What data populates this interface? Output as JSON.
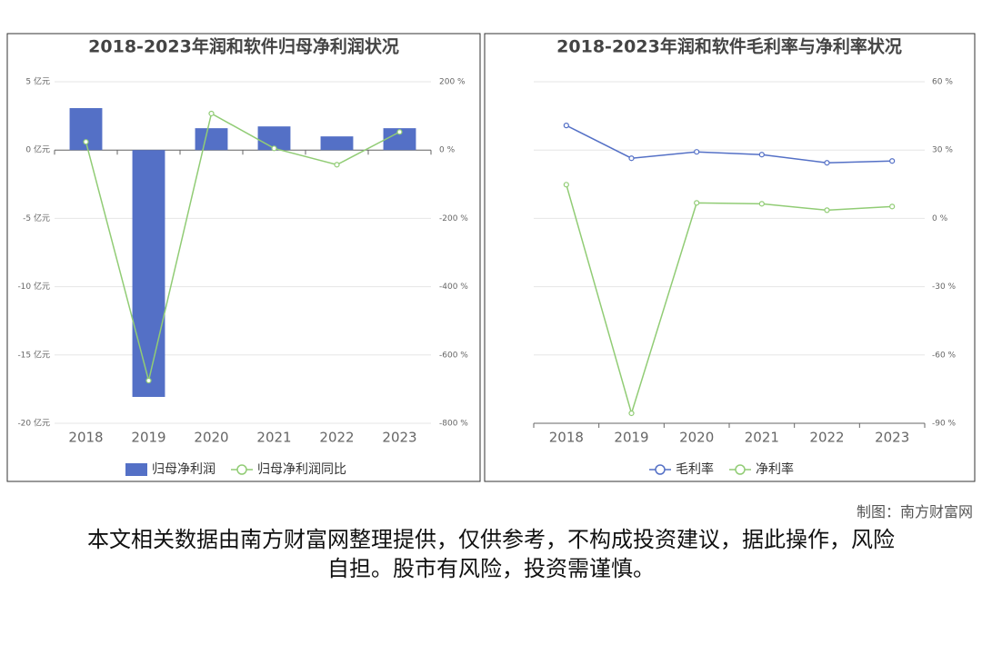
{
  "chart_data": [
    {
      "type": "bar",
      "title": "2018-2023年润和软件归母净利润状况",
      "categories": [
        "2018",
        "2019",
        "2020",
        "2021",
        "2022",
        "2023"
      ],
      "series": [
        {
          "name": "归母净利润",
          "color": "#5470c6",
          "values": [
            3.07,
            -18.07,
            1.6,
            1.73,
            1.0,
            1.6
          ]
        },
        {
          "name": "归母净利润同比",
          "color": "#91cc75",
          "type": "line",
          "axis": "y2",
          "values": [
            24,
            -675,
            107,
            5,
            -43,
            53
          ]
        }
      ],
      "ylim": [
        -20,
        5
      ],
      "yticks": [
        {
          "value": -20,
          "label": "-20 亿元"
        },
        {
          "value": -15,
          "label": "-15 亿元"
        },
        {
          "value": -10,
          "label": "-10 亿元"
        },
        {
          "value": -5,
          "label": "-5 亿元"
        },
        {
          "value": 0,
          "label": "0 亿元"
        },
        {
          "value": 5,
          "label": "5 亿元"
        }
      ],
      "y2lim": [
        -800,
        200
      ],
      "y2ticks": [
        {
          "value": -800,
          "label": "-800 %"
        },
        {
          "value": -600,
          "label": "-600 %"
        },
        {
          "value": -400,
          "label": "-400 %"
        },
        {
          "value": -200,
          "label": "-200 %"
        },
        {
          "value": 0,
          "label": "0 %"
        },
        {
          "value": 200,
          "label": "200 %"
        }
      ],
      "grid": true
    },
    {
      "type": "line",
      "title": "2018-2023年润和软件毛利率与净利率状况",
      "categories": [
        "2018",
        "2019",
        "2020",
        "2021",
        "2022",
        "2023"
      ],
      "series": [
        {
          "name": "毛利率",
          "color": "#5470c6",
          "values": [
            40.8,
            26.4,
            29.2,
            28,
            24.4,
            25.2
          ]
        },
        {
          "name": "净利率",
          "color": "#91cc75",
          "values": [
            14.8,
            -85.6,
            6.8,
            6.4,
            3.6,
            5.2
          ]
        }
      ],
      "ylim": [
        -90,
        60
      ],
      "yticks": [
        {
          "value": -90,
          "label": "-90 %"
        },
        {
          "value": -60,
          "label": "-60 %"
        },
        {
          "value": -30,
          "label": "-30 %"
        },
        {
          "value": 0,
          "label": "0 %"
        },
        {
          "value": 30,
          "label": "30 %"
        },
        {
          "value": 60,
          "label": "60 %"
        }
      ],
      "grid": true
    }
  ],
  "credit": "制图：南方财富网",
  "disclaimer": "本文相关数据由南方财富网整理提供，仅供参考，不构成投资建议，据此操作，风险自担。股市有风险，投资需谨慎。"
}
